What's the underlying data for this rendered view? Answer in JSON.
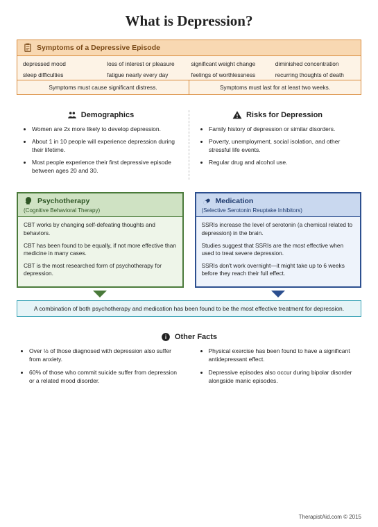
{
  "title": "What is Depression?",
  "symptoms": {
    "heading": "Symptoms of a Depressive Episode",
    "border_color": "#d98a3a",
    "head_bg": "#f8d8b2",
    "body_bg": "#fdf3e6",
    "items": [
      "depressed mood",
      "loss of interest or pleasure",
      "significant weight change",
      "diminished concentration",
      "sleep difficulties",
      "fatigue nearly every day",
      "feelings of worthlessness",
      "recurring thoughts of death"
    ],
    "footnotes": [
      "Symptoms must cause significant distress.",
      "Symptoms must last for at least two weeks."
    ]
  },
  "demographics": {
    "heading": "Demographics",
    "items": [
      "Women are 2x more likely to develop depression.",
      "About 1 in 10 people will experience depression during their lifetime.",
      "Most people experience their first depressive episode between ages 20 and 30."
    ]
  },
  "risks": {
    "heading": "Risks for Depression",
    "items": [
      "Family history of depression or similar disorders.",
      "Poverty, unemployment, social isolation, and other stressful life events.",
      "Regular drug and alcohol use."
    ]
  },
  "psychotherapy": {
    "heading": "Psychotherapy",
    "subheading": "(Cognitive Behavioral Therapy)",
    "border_color": "#4a7a3a",
    "head_bg": "#cfe2c3",
    "body_bg": "#eef5e9",
    "items": [
      "CBT works by changing self-defeating thoughts and behaviors.",
      "CBT has been found to be equally, if not more effective than medicine in many cases.",
      "CBT is the most researched form of psychotherapy for depression."
    ]
  },
  "medication": {
    "heading": "Medication",
    "subheading": "(Selective Serotonin Reuptake Inhibitors)",
    "border_color": "#2c4f8f",
    "head_bg": "#c9d8ef",
    "body_bg": "#eef3fb",
    "items": [
      "SSRIs increase the level of serotonin (a chemical related to depression) in the brain.",
      "Studies suggest that SSRIs are the most effective when used to treat severe depression.",
      "SSRIs don't work overnight—it might take up to 6 weeks before they reach their full effect."
    ]
  },
  "combination": {
    "text": "A combination of both psychotherapy and medication has been found to be the most effective treatment for depression.",
    "border_color": "#3fa5b8",
    "bg": "#e6f4f7"
  },
  "other": {
    "heading": "Other Facts",
    "left": [
      "Over ½ of those diagnosed with depression also suffer from anxiety.",
      "60% of those who commit suicide suffer from depression or a related mood disorder."
    ],
    "right": [
      "Physical exercise has been found to have a significant antidepressant effect.",
      "Depressive episodes also occur during bipolar disorder alongside manic episodes."
    ]
  },
  "footer": "TherapistAid.com © 2015"
}
